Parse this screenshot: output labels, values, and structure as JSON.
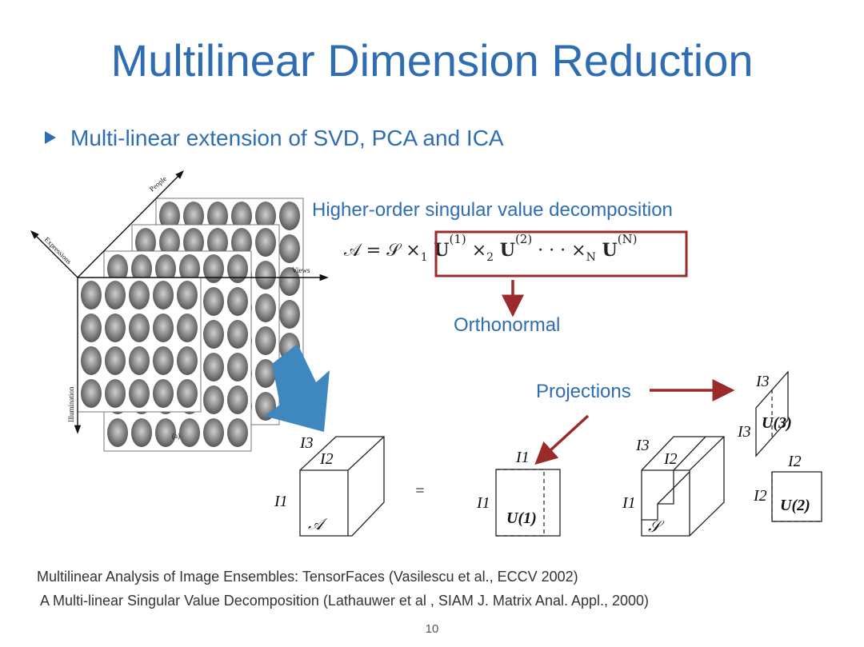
{
  "title": "Multilinear Dimension Reduction",
  "bullets": [
    "Multi-linear extension of SVD, PCA and ICA"
  ],
  "hosvd": {
    "heading": "Higher-order singular value decomposition",
    "formula": [
      {
        "text": "𝒜 = 𝒮 ×",
        "style": "normal"
      },
      {
        "text": "1",
        "style": "sub"
      },
      {
        "text": " U",
        "style": "bold"
      },
      {
        "text": "(1)",
        "style": "sup"
      },
      {
        "text": " ×",
        "style": "normal"
      },
      {
        "text": "2",
        "style": "sub"
      },
      {
        "text": " U",
        "style": "bold"
      },
      {
        "text": "(2)",
        "style": "sup"
      },
      {
        "text": " · · · ×",
        "style": "normal"
      },
      {
        "text": "N",
        "style": "sub"
      },
      {
        "text": " U",
        "style": "bold"
      },
      {
        "text": "(N)",
        "style": "sup"
      }
    ],
    "note": "Orthonormal"
  },
  "projections": "Projections",
  "face_axes": [
    "People",
    "Expressions",
    "Views",
    "Illumination",
    "(a)"
  ],
  "diagram_labels": [
    "I3",
    "I2",
    "I1",
    "𝒜",
    "=",
    "I1",
    "I1",
    "U(1)",
    "I3",
    "I2",
    "I1",
    "𝒮",
    "I3",
    "I3",
    "U(3)",
    "I2",
    "I2",
    "U(2)"
  ],
  "references": [
    "Multilinear Analysis of Image Ensembles: TensorFaces (Vasilescu et al., ECCV 2002)",
    "A Multi-linear Singular Value Decomposition (Lathauwer et al , SIAM J. Matrix Anal. Appl., 2000)"
  ],
  "page_number": "10"
}
